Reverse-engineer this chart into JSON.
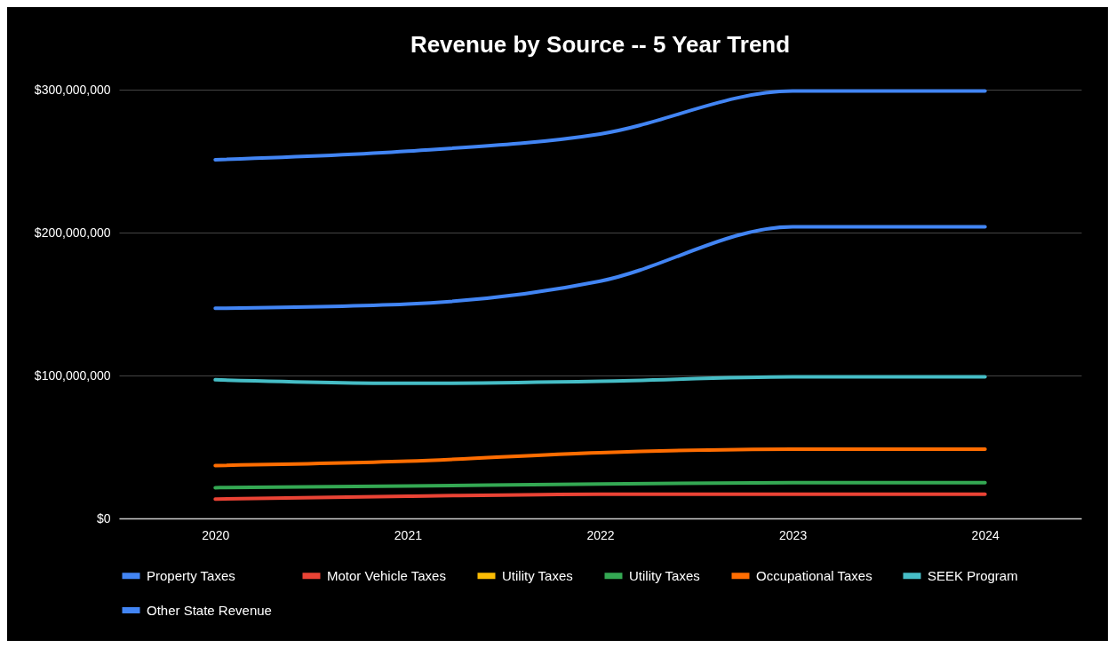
{
  "chart_data": {
    "type": "line",
    "title": "Revenue by Source -- 5 Year Trend",
    "categories": [
      "2020",
      "2021",
      "2022",
      "2023",
      "2024"
    ],
    "series": [
      {
        "name": "Property Taxes",
        "color": "#4285f4",
        "values": [
          251000000,
          257000000,
          269000000,
          299000000,
          299000000
        ]
      },
      {
        "name": "Motor Vehicle Taxes",
        "color": "#ea4335",
        "values": [
          13500000,
          15500000,
          17000000,
          17000000,
          17000000
        ]
      },
      {
        "name": "Utility Taxes",
        "color": "#fbbc04",
        "values": [
          null,
          null,
          null,
          null,
          null
        ]
      },
      {
        "name": "Utility Taxes",
        "color": "#34a853",
        "values": [
          21500000,
          22700000,
          24000000,
          25000000,
          25000000
        ]
      },
      {
        "name": "Occupational Taxes",
        "color": "#ff6d01",
        "values": [
          37000000,
          40000000,
          46000000,
          48500000,
          48500000
        ]
      },
      {
        "name": "SEEK Program",
        "color": "#46bdc6",
        "values": [
          97000000,
          94500000,
          96000000,
          99000000,
          99000000
        ]
      },
      {
        "name": "Other State Revenue",
        "color": "#4285f4",
        "values": [
          147000000,
          150000000,
          166000000,
          204000000,
          204000000
        ]
      }
    ],
    "ylim": [
      0,
      300000000
    ],
    "yticks": [
      {
        "value": 0,
        "label": "$0"
      },
      {
        "value": 100000000,
        "label": "$100,000,000"
      },
      {
        "value": 200000000,
        "label": "$200,000,000"
      },
      {
        "value": 300000000,
        "label": "$300,000,000"
      }
    ],
    "grid": "y",
    "legend": "bottom",
    "marker": "none",
    "line_style": "solid"
  }
}
